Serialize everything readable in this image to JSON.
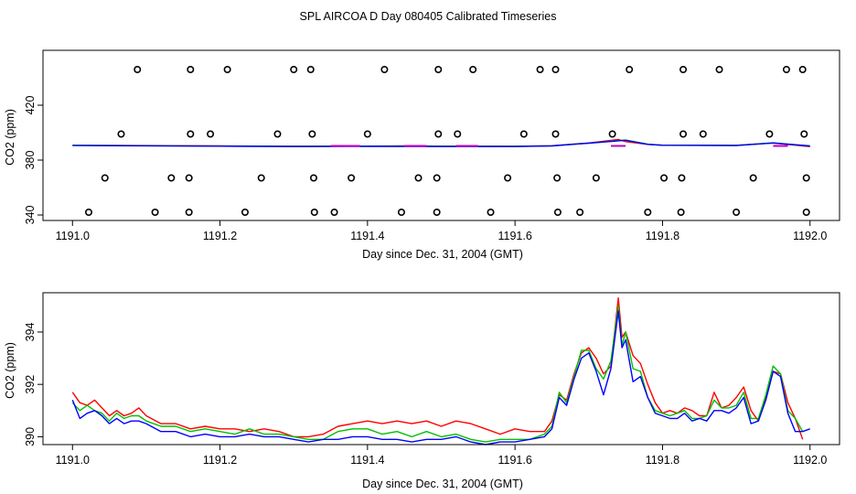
{
  "figure_title": "SPL AIRCOA D  Day 080405  Calibrated Timeseries",
  "chart_data": [
    {
      "type": "line+scatter",
      "xlabel": "Day since Dec. 31, 2004 (GMT)",
      "ylabel": "CO2 (ppm)",
      "xlim": [
        1190.96,
        1192.04
      ],
      "ylim": [
        336,
        460
      ],
      "xticks": [
        1191.0,
        1191.2,
        1191.4,
        1191.6,
        1191.8,
        1192.0
      ],
      "xtick_labels": [
        "1191.0",
        "1191.2",
        "1191.4",
        "1191.6",
        "1191.8",
        "1192.0"
      ],
      "yticks": [
        340,
        380,
        420
      ],
      "ytick_labels": [
        "340",
        "380",
        "420"
      ],
      "colors": {
        "red": "#ff0000",
        "green": "#00c000",
        "blue": "#0000ff",
        "magenta": "#c000c0",
        "circles": "#000000"
      },
      "line_series": [
        {
          "name": "red",
          "x": [
            1191.0,
            1191.1,
            1191.2,
            1191.3,
            1191.4,
            1191.45,
            1191.5,
            1191.6,
            1191.65,
            1191.7,
            1191.74,
            1191.75,
            1191.78,
            1191.8,
            1191.9,
            1191.95,
            1192.0
          ],
          "y": [
            390.8,
            390.6,
            390.3,
            390.1,
            390.2,
            390.4,
            390.2,
            390.1,
            390.5,
            392.5,
            395.0,
            393.5,
            391.5,
            390.9,
            390.8,
            392.5,
            389.8
          ]
        },
        {
          "name": "green",
          "x": [
            1191.0,
            1191.1,
            1191.2,
            1191.3,
            1191.4,
            1191.5,
            1191.6,
            1191.65,
            1191.7,
            1191.75,
            1191.78,
            1191.8,
            1191.9,
            1191.95,
            1192.0
          ],
          "y": [
            390.9,
            390.5,
            390.2,
            390.0,
            390.1,
            390.1,
            390.0,
            390.4,
            392.4,
            394.6,
            391.6,
            390.9,
            390.7,
            392.6,
            390.2
          ]
        },
        {
          "name": "blue",
          "x": [
            1191.0,
            1191.1,
            1191.2,
            1191.3,
            1191.4,
            1191.5,
            1191.6,
            1191.65,
            1191.7,
            1191.75,
            1191.78,
            1191.8,
            1191.9,
            1191.95,
            1192.0
          ],
          "y": [
            390.6,
            390.4,
            390.1,
            389.9,
            390.0,
            389.9,
            389.9,
            390.3,
            392.3,
            394.5,
            391.5,
            390.8,
            390.6,
            392.5,
            390.3
          ]
        }
      ],
      "magenta_segments": [
        [
          1191.35,
          1191.39
        ],
        [
          1191.45,
          1191.48
        ],
        [
          1191.52,
          1191.55
        ],
        [
          1191.73,
          1191.75
        ],
        [
          1191.95,
          1191.97
        ]
      ],
      "scatter_points": [
        {
          "x": 1191.088,
          "y": 446
        },
        {
          "x": 1191.16,
          "y": 446
        },
        {
          "x": 1191.21,
          "y": 446
        },
        {
          "x": 1191.3,
          "y": 446
        },
        {
          "x": 1191.323,
          "y": 446
        },
        {
          "x": 1191.423,
          "y": 446
        },
        {
          "x": 1191.496,
          "y": 446
        },
        {
          "x": 1191.543,
          "y": 446
        },
        {
          "x": 1191.634,
          "y": 446
        },
        {
          "x": 1191.655,
          "y": 446
        },
        {
          "x": 1191.755,
          "y": 446
        },
        {
          "x": 1191.828,
          "y": 446
        },
        {
          "x": 1191.877,
          "y": 446
        },
        {
          "x": 1191.968,
          "y": 446
        },
        {
          "x": 1191.99,
          "y": 446
        },
        {
          "x": 1191.066,
          "y": 399
        },
        {
          "x": 1191.16,
          "y": 399
        },
        {
          "x": 1191.187,
          "y": 399
        },
        {
          "x": 1191.278,
          "y": 399
        },
        {
          "x": 1191.325,
          "y": 399
        },
        {
          "x": 1191.4,
          "y": 399
        },
        {
          "x": 1191.496,
          "y": 399
        },
        {
          "x": 1191.522,
          "y": 399
        },
        {
          "x": 1191.612,
          "y": 399
        },
        {
          "x": 1191.655,
          "y": 399
        },
        {
          "x": 1191.732,
          "y": 399
        },
        {
          "x": 1191.828,
          "y": 399
        },
        {
          "x": 1191.855,
          "y": 399
        },
        {
          "x": 1191.945,
          "y": 399
        },
        {
          "x": 1191.992,
          "y": 399
        },
        {
          "x": 1191.044,
          "y": 367
        },
        {
          "x": 1191.134,
          "y": 367
        },
        {
          "x": 1191.158,
          "y": 367
        },
        {
          "x": 1191.256,
          "y": 367
        },
        {
          "x": 1191.327,
          "y": 367
        },
        {
          "x": 1191.378,
          "y": 367
        },
        {
          "x": 1191.469,
          "y": 367
        },
        {
          "x": 1191.494,
          "y": 367
        },
        {
          "x": 1191.59,
          "y": 367
        },
        {
          "x": 1191.657,
          "y": 367
        },
        {
          "x": 1191.71,
          "y": 367
        },
        {
          "x": 1191.802,
          "y": 367
        },
        {
          "x": 1191.826,
          "y": 367
        },
        {
          "x": 1191.923,
          "y": 367
        },
        {
          "x": 1191.995,
          "y": 367
        },
        {
          "x": 1191.022,
          "y": 342
        },
        {
          "x": 1191.112,
          "y": 342
        },
        {
          "x": 1191.158,
          "y": 342
        },
        {
          "x": 1191.234,
          "y": 342
        },
        {
          "x": 1191.328,
          "y": 342
        },
        {
          "x": 1191.355,
          "y": 342
        },
        {
          "x": 1191.446,
          "y": 342
        },
        {
          "x": 1191.494,
          "y": 342
        },
        {
          "x": 1191.567,
          "y": 342
        },
        {
          "x": 1191.658,
          "y": 342
        },
        {
          "x": 1191.688,
          "y": 342
        },
        {
          "x": 1191.78,
          "y": 342
        },
        {
          "x": 1191.825,
          "y": 342
        },
        {
          "x": 1191.9,
          "y": 342
        },
        {
          "x": 1191.995,
          "y": 342
        }
      ]
    },
    {
      "type": "line",
      "xlabel": "Day since Dec. 31, 2004 (GMT)",
      "ylabel": "CO2 (ppm)",
      "xlim": [
        1190.96,
        1192.04
      ],
      "ylim": [
        389.7,
        395.5
      ],
      "xticks": [
        1191.0,
        1191.2,
        1191.4,
        1191.6,
        1191.8,
        1192.0
      ],
      "xtick_labels": [
        "1191.0",
        "1191.2",
        "1191.4",
        "1191.6",
        "1191.8",
        "1192.0"
      ],
      "yticks": [
        390,
        392,
        394
      ],
      "ytick_labels": [
        "390",
        "392",
        "394"
      ],
      "series": [
        {
          "name": "red",
          "color": "#ff0000",
          "x": [
            1191.0,
            1191.01,
            1191.02,
            1191.03,
            1191.04,
            1191.05,
            1191.06,
            1191.07,
            1191.08,
            1191.09,
            1191.1,
            1191.12,
            1191.14,
            1191.16,
            1191.18,
            1191.2,
            1191.22,
            1191.24,
            1191.26,
            1191.28,
            1191.3,
            1191.32,
            1191.34,
            1191.36,
            1191.38,
            1191.4,
            1191.42,
            1191.44,
            1191.46,
            1191.48,
            1191.5,
            1191.52,
            1191.54,
            1191.56,
            1191.58,
            1191.6,
            1191.62,
            1191.64,
            1191.65,
            1191.66,
            1191.67,
            1191.68,
            1191.69,
            1191.7,
            1191.71,
            1191.72,
            1191.73,
            1191.74,
            1191.745,
            1191.75,
            1191.76,
            1191.77,
            1191.78,
            1191.79,
            1191.8,
            1191.81,
            1191.82,
            1191.83,
            1191.84,
            1191.85,
            1191.86,
            1191.87,
            1191.88,
            1191.89,
            1191.9,
            1191.91,
            1191.92,
            1191.93,
            1191.94,
            1191.95,
            1191.96,
            1191.97,
            1191.98,
            1191.99
          ],
          "y": [
            391.7,
            391.3,
            391.2,
            391.4,
            391.1,
            390.8,
            391.0,
            390.8,
            390.9,
            391.1,
            390.8,
            390.5,
            390.5,
            390.3,
            390.4,
            390.3,
            390.3,
            390.2,
            390.3,
            390.2,
            390.0,
            390.0,
            390.1,
            390.4,
            390.5,
            390.6,
            390.5,
            390.6,
            390.5,
            390.6,
            390.4,
            390.6,
            390.5,
            390.3,
            390.1,
            390.3,
            390.2,
            390.2,
            390.6,
            391.6,
            391.4,
            392.4,
            393.2,
            393.4,
            393.0,
            392.4,
            392.7,
            395.3,
            393.8,
            394.0,
            393.1,
            392.8,
            392.0,
            391.3,
            390.9,
            391.0,
            390.9,
            391.1,
            391.0,
            390.8,
            390.8,
            391.7,
            391.1,
            391.2,
            391.5,
            391.9,
            391.0,
            390.6,
            391.5,
            392.5,
            392.4,
            391.3,
            390.7,
            389.9
          ]
        },
        {
          "name": "green",
          "color": "#00c000",
          "x": [
            1191.0,
            1191.01,
            1191.02,
            1191.03,
            1191.04,
            1191.05,
            1191.06,
            1191.07,
            1191.08,
            1191.09,
            1191.1,
            1191.12,
            1191.14,
            1191.16,
            1191.18,
            1191.2,
            1191.22,
            1191.24,
            1191.26,
            1191.28,
            1191.3,
            1191.32,
            1191.34,
            1191.36,
            1191.38,
            1191.4,
            1191.42,
            1191.44,
            1191.46,
            1191.48,
            1191.5,
            1191.52,
            1191.54,
            1191.56,
            1191.58,
            1191.6,
            1191.62,
            1191.64,
            1191.65,
            1191.66,
            1191.67,
            1191.68,
            1191.69,
            1191.7,
            1191.71,
            1191.72,
            1191.73,
            1191.74,
            1191.745,
            1191.75,
            1191.76,
            1191.77,
            1191.78,
            1191.79,
            1191.8,
            1191.81,
            1191.82,
            1191.83,
            1191.84,
            1191.85,
            1191.86,
            1191.87,
            1191.88,
            1191.89,
            1191.9,
            1191.91,
            1191.92,
            1191.93,
            1191.94,
            1191.95,
            1191.96,
            1191.97,
            1191.98,
            1191.99
          ],
          "y": [
            391.3,
            391.0,
            391.2,
            391.0,
            390.9,
            390.6,
            390.9,
            390.7,
            390.8,
            390.8,
            390.6,
            390.4,
            390.4,
            390.2,
            390.3,
            390.2,
            390.1,
            390.3,
            390.1,
            390.1,
            390.0,
            389.9,
            389.9,
            390.2,
            390.3,
            390.3,
            390.1,
            390.2,
            390.0,
            390.2,
            390.0,
            390.1,
            389.9,
            389.8,
            389.9,
            389.9,
            389.9,
            390.1,
            390.4,
            391.7,
            391.3,
            392.3,
            393.3,
            393.3,
            392.6,
            392.2,
            392.9,
            395.0,
            393.5,
            394.0,
            392.6,
            392.5,
            391.5,
            391.0,
            390.9,
            390.8,
            390.9,
            391.0,
            390.7,
            390.7,
            390.8,
            391.4,
            391.1,
            391.1,
            391.2,
            391.7,
            390.7,
            390.7,
            391.6,
            392.7,
            392.4,
            391.0,
            390.7,
            390.2
          ]
        },
        {
          "name": "blue",
          "color": "#0000ff",
          "x": [
            1191.0,
            1191.01,
            1191.02,
            1191.03,
            1191.04,
            1191.05,
            1191.06,
            1191.07,
            1191.08,
            1191.09,
            1191.1,
            1191.12,
            1191.14,
            1191.16,
            1191.18,
            1191.2,
            1191.22,
            1191.24,
            1191.26,
            1191.28,
            1191.3,
            1191.32,
            1191.34,
            1191.36,
            1191.38,
            1191.4,
            1191.42,
            1191.44,
            1191.46,
            1191.48,
            1191.5,
            1191.52,
            1191.54,
            1191.56,
            1191.58,
            1191.6,
            1191.62,
            1191.64,
            1191.65,
            1191.66,
            1191.67,
            1191.68,
            1191.69,
            1191.7,
            1191.71,
            1191.72,
            1191.73,
            1191.74,
            1191.745,
            1191.75,
            1191.76,
            1191.77,
            1191.78,
            1191.79,
            1191.8,
            1191.81,
            1191.82,
            1191.83,
            1191.84,
            1191.85,
            1191.86,
            1191.87,
            1191.88,
            1191.89,
            1191.9,
            1191.91,
            1191.92,
            1191.93,
            1191.94,
            1191.95,
            1191.96,
            1191.97,
            1191.98,
            1191.99,
            1192.0
          ],
          "y": [
            391.4,
            390.7,
            390.9,
            391.0,
            390.8,
            390.5,
            390.7,
            390.5,
            390.6,
            390.6,
            390.5,
            390.2,
            390.2,
            390.0,
            390.1,
            390.0,
            390.0,
            390.1,
            390.0,
            390.0,
            389.9,
            389.8,
            389.9,
            389.9,
            390.0,
            390.0,
            389.9,
            389.9,
            389.8,
            389.9,
            389.9,
            390.0,
            389.8,
            389.7,
            389.8,
            389.8,
            389.9,
            390.0,
            390.3,
            391.5,
            391.2,
            392.2,
            393.0,
            393.2,
            392.5,
            391.6,
            392.6,
            394.8,
            393.4,
            393.7,
            392.1,
            392.3,
            391.5,
            390.9,
            390.8,
            390.7,
            390.7,
            390.9,
            390.6,
            390.7,
            390.6,
            391.0,
            391.0,
            390.9,
            391.1,
            391.5,
            390.5,
            390.6,
            391.4,
            392.5,
            392.3,
            390.9,
            390.2,
            390.2,
            390.3
          ]
        }
      ]
    }
  ]
}
